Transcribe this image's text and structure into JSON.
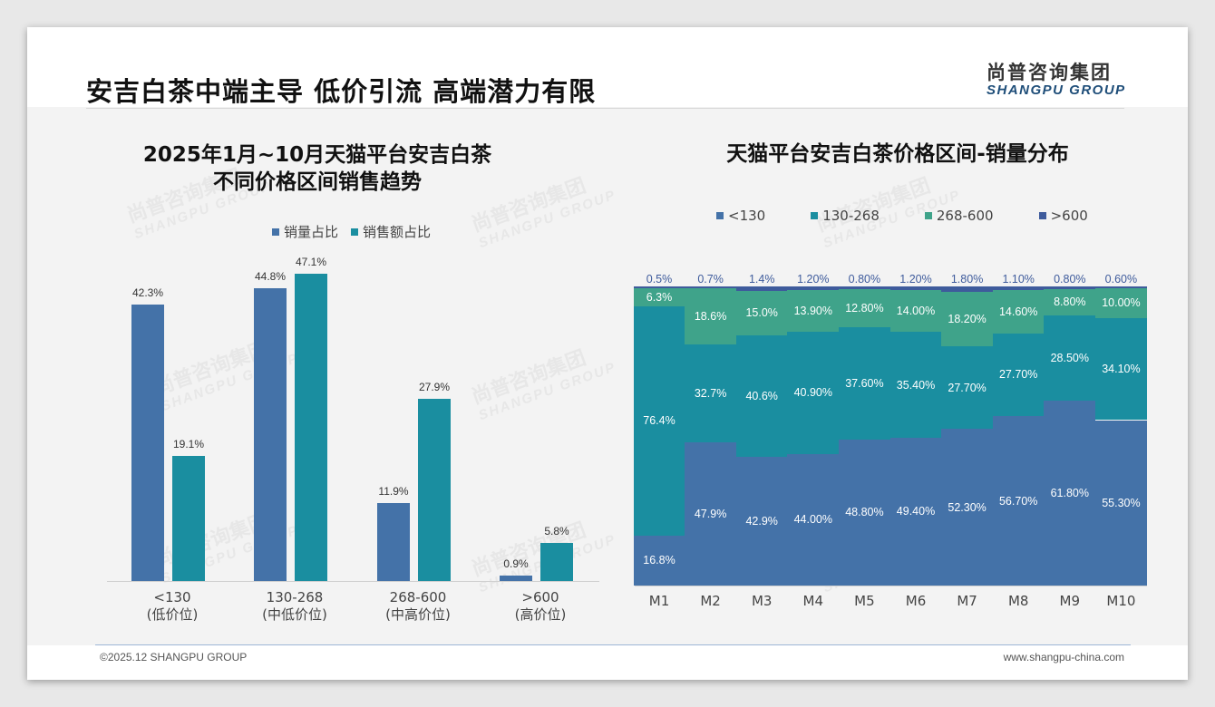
{
  "header": {
    "title": "安吉白茶中端主导 低价引流 高端潜力有限",
    "logo_cn": "尚普咨询集团",
    "logo_en": "SHANGPU GROUP"
  },
  "footer": {
    "copyright": "©2025.12 SHANGPU GROUP",
    "website": "www.shangpu-china.com"
  },
  "watermark": {
    "cn": "尚普咨询集团",
    "en": "SHANGPU GROUP"
  },
  "colors": {
    "sales_volume": "#4472a8",
    "sales_amount": "#1a8ea0",
    "lt130": "#4472a8",
    "r130_268": "#1a8ea0",
    "r268_600": "#3fa38a",
    "gt600": "#3e5b9c"
  },
  "chart_data": [
    {
      "type": "bar",
      "title_line1": "2025年1月~10月天猫平台安吉白茶",
      "title_line2": "不同价格区间销售趋势",
      "categories": [
        "<130",
        "130-268",
        "268-600",
        ">600"
      ],
      "category_sublabels": [
        "(低价位)",
        "(中低价位)",
        "(中高价位)",
        "(高价位)"
      ],
      "series": [
        {
          "name": "销量占比",
          "values": [
            42.3,
            44.8,
            11.9,
            0.9
          ]
        },
        {
          "name": "销售额占比",
          "values": [
            19.1,
            47.1,
            27.9,
            5.8
          ]
        }
      ],
      "unit": "%",
      "ylim": [
        0,
        50
      ],
      "legend": "top-center",
      "grid": false
    },
    {
      "type": "bar",
      "stacked": true,
      "title": "天猫平台安吉白茶价格区间-销量分布",
      "categories": [
        "M1",
        "M2",
        "M3",
        "M4",
        "M5",
        "M6",
        "M7",
        "M8",
        "M9",
        "M10"
      ],
      "series": [
        {
          "name": "<130",
          "values": [
            "16.8",
            "47.9",
            "42.9",
            "44.00",
            "48.80",
            "49.40",
            "52.30",
            "56.70",
            "61.80",
            "55.30"
          ]
        },
        {
          "name": "130-268",
          "values": [
            "76.4",
            "32.7",
            "40.6",
            "40.90",
            "37.60",
            "35.40",
            "27.70",
            "27.70",
            "28.50",
            "34.10"
          ]
        },
        {
          "name": "268-600",
          "values": [
            "6.3",
            "18.6",
            "15.0",
            "13.90",
            "12.80",
            "14.00",
            "18.20",
            "14.60",
            "8.80",
            "10.00"
          ]
        },
        {
          "name": ">600",
          "values": [
            "0.5",
            "0.7",
            "1.4",
            "1.20",
            "0.80",
            "1.20",
            "1.80",
            "1.10",
            "0.80",
            "0.60"
          ]
        }
      ],
      "unit": "%",
      "ylim": [
        0,
        100
      ],
      "legend": "top-center",
      "grid": false
    }
  ]
}
